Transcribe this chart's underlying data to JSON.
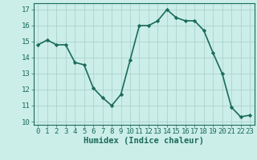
{
  "x": [
    0,
    1,
    2,
    3,
    4,
    5,
    6,
    7,
    8,
    9,
    10,
    11,
    12,
    13,
    14,
    15,
    16,
    17,
    18,
    19,
    20,
    21,
    22,
    23
  ],
  "y": [
    14.8,
    15.1,
    14.8,
    14.8,
    13.7,
    13.55,
    12.1,
    11.5,
    11.0,
    11.7,
    13.85,
    16.0,
    16.0,
    16.3,
    17.0,
    16.5,
    16.3,
    16.3,
    15.7,
    14.3,
    13.0,
    10.9,
    10.3,
    10.4
  ],
  "line_color": "#1a6b5a",
  "marker": "D",
  "marker_size": 2.2,
  "bg_color": "#cceee8",
  "grid_color": "#aad4cc",
  "xlabel": "Humidex (Indice chaleur)",
  "xlabel_fontsize": 7.5,
  "ylabel_ticks": [
    10,
    11,
    12,
    13,
    14,
    15,
    16,
    17
  ],
  "xlim": [
    -0.5,
    23.5
  ],
  "ylim": [
    9.8,
    17.4
  ],
  "tick_fontsize": 6.5,
  "linewidth": 1.2
}
